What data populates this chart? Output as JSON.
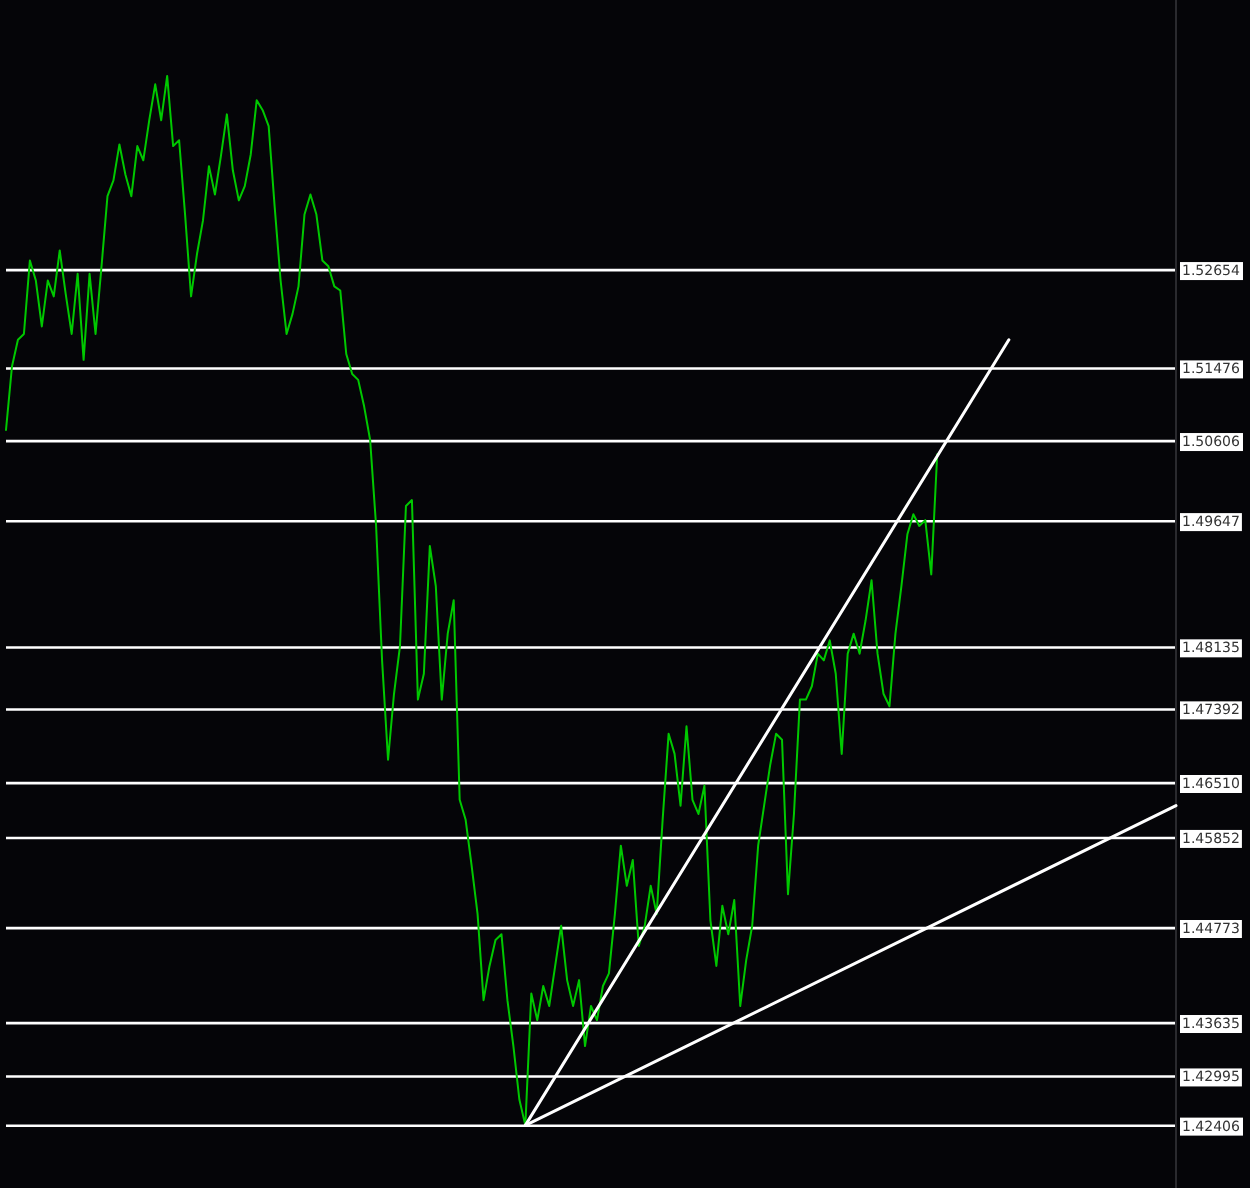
{
  "chart_data": {
    "type": "line",
    "categories": [
      null,
      null,
      null,
      null,
      null,
      null,
      null,
      null,
      null,
      null,
      null,
      null,
      null,
      null,
      null,
      null,
      null,
      null,
      null,
      null,
      null,
      null,
      null,
      null,
      null,
      null,
      null,
      null,
      null,
      null,
      null,
      null,
      null,
      null,
      null,
      null,
      null,
      null,
      null,
      null,
      null,
      null,
      null,
      null,
      null,
      null,
      null,
      null,
      null,
      null,
      null,
      null,
      null,
      null,
      null,
      null,
      null,
      null,
      null,
      null,
      null,
      null,
      null,
      null,
      null,
      null,
      null,
      null,
      null,
      null,
      null,
      null,
      null,
      null,
      null,
      null,
      null,
      null,
      null,
      null,
      null,
      null,
      null,
      null,
      null,
      null,
      null,
      null,
      null,
      null,
      null,
      null,
      null,
      null,
      null,
      null,
      null,
      null,
      null,
      null,
      null,
      null,
      null,
      null,
      null,
      null,
      null,
      null,
      null,
      null,
      null,
      null,
      null,
      null,
      null,
      null,
      null,
      null,
      null,
      null,
      null,
      null,
      null,
      null,
      null,
      null,
      null,
      null,
      null,
      null,
      null,
      null,
      null,
      null,
      null,
      null,
      null,
      null,
      null,
      null,
      null,
      null,
      null,
      null,
      null,
      null,
      null,
      null,
      null,
      null,
      null,
      null,
      null,
      null,
      null,
      null,
      null,
      null,
      null,
      null,
      null,
      null,
      null,
      null,
      null,
      null,
      null,
      null,
      null,
      null,
      null,
      null,
      null,
      null,
      null,
      null,
      null,
      null,
      null,
      null,
      null,
      null,
      null,
      null,
      null,
      null,
      null,
      null,
      null,
      null,
      null,
      null,
      null,
      null,
      null,
      null,
      null
    ],
    "series": [
      {
        "color": "#00c800",
        "values": [
          1.5074,
          1.515,
          1.5182,
          1.5189,
          1.5277,
          1.5253,
          1.5198,
          1.5253,
          1.5234,
          1.5289,
          1.5237,
          1.5189,
          1.5261,
          1.5158,
          1.5261,
          1.5189,
          1.527,
          1.5354,
          1.5373,
          1.5416,
          1.538,
          1.5354,
          1.5414,
          1.5397,
          1.5445,
          1.5488,
          1.5445,
          1.5498,
          1.5414,
          1.5421,
          1.5332,
          1.5234,
          1.5285,
          1.5325,
          1.539,
          1.5356,
          1.5402,
          1.5452,
          1.5385,
          1.5349,
          1.5366,
          1.5404,
          1.5469,
          1.5457,
          1.5438,
          1.5342,
          1.5253,
          1.5189,
          1.5213,
          1.5246,
          1.5332,
          1.5356,
          1.5332,
          1.5277,
          1.527,
          1.5246,
          1.5241,
          1.5165,
          1.5141,
          1.5134,
          1.5102,
          1.5062,
          1.4959,
          1.4798,
          1.4679,
          1.4758,
          1.4815,
          1.4983,
          1.499,
          1.4751,
          1.4782,
          1.4935,
          1.4887,
          1.4751,
          1.483,
          1.487,
          1.4631,
          1.4607,
          1.4552,
          1.4494,
          1.4391,
          1.4432,
          1.4463,
          1.447,
          1.4391,
          1.4336,
          1.4272,
          1.4241,
          1.4399,
          1.4367,
          1.4408,
          1.4384,
          1.4432,
          1.448,
          1.4415,
          1.4384,
          1.4415,
          1.4336,
          1.4384,
          1.4367,
          1.4408,
          1.4423,
          1.4494,
          1.4576,
          1.4528,
          1.4559,
          1.4456,
          1.448,
          1.4528,
          1.4494,
          1.4607,
          1.471,
          1.4686,
          1.4624,
          1.4719,
          1.4631,
          1.4614,
          1.4648,
          1.4487,
          1.4432,
          1.4504,
          1.447,
          1.4511,
          1.4384,
          1.4439,
          1.448,
          1.4576,
          1.4624,
          1.4672,
          1.471,
          1.4703,
          1.4518,
          1.4614,
          1.4751,
          1.4751,
          1.4767,
          1.4806,
          1.4798,
          1.4822,
          1.4782,
          1.4686,
          1.4806,
          1.483,
          1.4806,
          1.4846,
          1.4894,
          1.4806,
          1.4758,
          1.4743,
          1.483,
          1.4887,
          1.4949,
          1.4973,
          1.4959,
          1.4966,
          1.4901,
          1.5045,
          null,
          null,
          null,
          null,
          null,
          null,
          null,
          null,
          null,
          null,
          null,
          null,
          null,
          null,
          null,
          null,
          null,
          null,
          null,
          null,
          null,
          null,
          null,
          null,
          null,
          null,
          null,
          null,
          null,
          null,
          null,
          null,
          null,
          null,
          null,
          null,
          null,
          null,
          null,
          null
        ]
      },
      {
        "color": "#ffffff",
        "values": [
          null,
          null,
          null,
          null,
          null,
          null,
          null,
          null,
          null,
          null,
          null,
          null,
          null,
          null,
          null,
          null,
          null,
          null,
          null,
          null,
          null,
          null,
          null,
          null,
          null,
          null,
          null,
          null,
          null,
          null,
          null,
          null,
          null,
          null,
          null,
          null,
          null,
          null,
          null,
          null,
          null,
          null,
          null,
          null,
          null,
          null,
          null,
          null,
          null,
          null,
          null,
          null,
          null,
          null,
          null,
          null,
          null,
          null,
          null,
          null,
          null,
          null,
          null,
          null,
          null,
          null,
          null,
          null,
          null,
          null,
          null,
          null,
          null,
          null,
          null,
          null,
          null,
          null,
          null,
          null,
          null,
          null,
          null,
          null,
          null,
          null,
          null,
          1.4241,
          null,
          null,
          null,
          null,
          null,
          null,
          null,
          null,
          null,
          null,
          null,
          null,
          null,
          null,
          null,
          null,
          null,
          null,
          null,
          null,
          null,
          null,
          null,
          null,
          null,
          null,
          null,
          null,
          null,
          null,
          null,
          null,
          null,
          null,
          null,
          null,
          null,
          null,
          null,
          null,
          null,
          null,
          null,
          null,
          null,
          null,
          null,
          null,
          null,
          null,
          null,
          null,
          null,
          null,
          null,
          null,
          null,
          null,
          null,
          null,
          null,
          null,
          null,
          null,
          null,
          null,
          null,
          null,
          null,
          null,
          null,
          null,
          null,
          null,
          null,
          null,
          null,
          null,
          null,
          null,
          1.5182,
          null,
          null,
          null,
          null,
          null,
          null,
          null,
          null,
          null,
          null,
          null,
          null,
          null,
          null,
          null,
          null,
          null,
          null,
          null,
          null,
          null,
          null,
          null,
          null,
          null,
          null,
          null,
          null
        ]
      },
      {
        "color": "#ffffff",
        "values": [
          null,
          null,
          null,
          null,
          null,
          null,
          null,
          null,
          null,
          null,
          null,
          null,
          null,
          null,
          null,
          null,
          null,
          null,
          null,
          null,
          null,
          null,
          null,
          null,
          null,
          null,
          null,
          null,
          null,
          null,
          null,
          null,
          null,
          null,
          null,
          null,
          null,
          null,
          null,
          null,
          null,
          null,
          null,
          null,
          null,
          null,
          null,
          null,
          null,
          null,
          null,
          null,
          null,
          null,
          null,
          null,
          null,
          null,
          null,
          null,
          null,
          null,
          null,
          null,
          null,
          null,
          null,
          null,
          null,
          null,
          null,
          null,
          null,
          null,
          null,
          null,
          null,
          null,
          null,
          null,
          null,
          null,
          null,
          null,
          null,
          null,
          null,
          1.4241,
          null,
          null,
          null,
          null,
          null,
          null,
          null,
          null,
          null,
          null,
          null,
          null,
          null,
          null,
          null,
          null,
          null,
          null,
          null,
          null,
          null,
          null,
          null,
          null,
          null,
          null,
          null,
          null,
          null,
          null,
          null,
          null,
          null,
          null,
          null,
          null,
          null,
          null,
          null,
          null,
          null,
          null,
          null,
          null,
          null,
          null,
          null,
          null,
          null,
          null,
          null,
          null,
          null,
          null,
          null,
          null,
          null,
          null,
          null,
          null,
          null,
          null,
          null,
          null,
          null,
          null,
          null,
          null,
          null,
          null,
          null,
          null,
          null,
          null,
          null,
          null,
          null,
          null,
          null,
          null,
          null,
          null,
          null,
          null,
          null,
          null,
          null,
          null,
          null,
          null,
          null,
          null,
          null,
          null,
          null,
          null,
          null,
          null,
          null,
          null,
          null,
          null,
          null,
          null,
          null,
          null,
          null,
          null,
          1.4624
        ]
      }
    ],
    "tick_labels": "y",
    "grid": "y",
    "ylim": [
      1.4166,
      1.5589
    ],
    "yticks": [
      1.52654,
      1.51476,
      1.50606,
      1.49647,
      1.48135,
      1.47392,
      {
        "value": 1.4651,
        "label": "1.46510"
      },
      1.45852,
      1.44773,
      1.43635,
      1.42995,
      1.42406
    ]
  }
}
